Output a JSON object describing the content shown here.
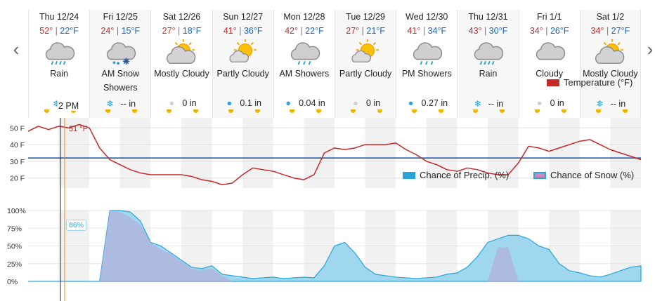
{
  "nav": {
    "prev_icon": "chevron-left-icon",
    "next_icon": "chevron-right-icon"
  },
  "days": [
    {
      "name": "Thu 12/24",
      "hi": "52°",
      "lo": "22°F",
      "icon": "rain-icon",
      "cond_lines": [
        "Rain"
      ],
      "precip_icon": "snowflake-icon",
      "precip": ""
    },
    {
      "name": "Fri 12/25",
      "hi": "24°",
      "lo": "15°F",
      "icon": "snow-showers-icon",
      "cond_lines": [
        "AM Snow",
        "Showers"
      ],
      "precip_icon": "snowflake-icon",
      "precip": "-- in"
    },
    {
      "name": "Sat 12/26",
      "hi": "27°",
      "lo": "18°F",
      "icon": "mostly-cloudy-icon",
      "cond_lines": [
        "Mostly Cloudy"
      ],
      "precip_icon": "drop-gray-icon",
      "precip": "0 in"
    },
    {
      "name": "Sun 12/27",
      "hi": "41°",
      "lo": "36°F",
      "icon": "partly-cloudy-icon",
      "cond_lines": [
        "Partly Cloudy"
      ],
      "precip_icon": "drop-icon",
      "precip": "0.1 in"
    },
    {
      "name": "Mon 12/28",
      "hi": "42°",
      "lo": "22°F",
      "icon": "showers-icon",
      "cond_lines": [
        "AM Showers"
      ],
      "precip_icon": "drop-icon",
      "precip": "0.04 in"
    },
    {
      "name": "Tue 12/29",
      "hi": "27°",
      "lo": "21°F",
      "icon": "partly-cloudy-icon",
      "cond_lines": [
        "Partly Cloudy"
      ],
      "precip_icon": "drop-gray-icon",
      "precip": "0 in"
    },
    {
      "name": "Wed 12/30",
      "hi": "41°",
      "lo": "34°F",
      "icon": "showers-icon",
      "cond_lines": [
        "PM Showers"
      ],
      "precip_icon": "drop-icon",
      "precip": "0.27 in"
    },
    {
      "name": "Thu 12/31",
      "hi": "43°",
      "lo": "30°F",
      "icon": "rain-icon",
      "cond_lines": [
        "Rain"
      ],
      "precip_icon": "snowflake-icon",
      "precip": "-- in"
    },
    {
      "name": "Fri 1/1",
      "hi": "34°",
      "lo": "26°F",
      "icon": "cloudy-icon",
      "cond_lines": [
        "Cloudy"
      ],
      "precip_icon": "drop-gray-icon",
      "precip": "0 in"
    },
    {
      "name": "Sat 1/2",
      "hi": "34°",
      "lo": "27°F",
      "icon": "mostly-cloudy-icon",
      "cond_lines": [
        "Mostly Cloudy"
      ],
      "precip_icon": "snowflake-icon",
      "precip": "-- in"
    }
  ],
  "cursor": {
    "time": "2 PM",
    "temp": "51 °F",
    "prob": "86%"
  },
  "colors": {
    "temp_line": "#c62828",
    "freezing_line": "#1e5aa8",
    "precip_fill": "#9fd8ee",
    "precip_line": "#29a3d8",
    "snow_fill": "#b2b2dc",
    "hi": "#c62828",
    "lo": "#1565c0"
  },
  "chart_data": [
    {
      "type": "line",
      "series": [
        {
          "name": "Temperature (°F)",
          "x_hours": [
            0,
            4,
            8,
            12,
            16,
            20,
            24,
            28,
            32,
            36,
            40,
            44,
            48,
            52,
            56,
            60,
            64,
            68,
            72,
            76,
            80,
            84,
            88,
            92,
            96,
            100,
            104,
            108,
            112,
            116,
            120,
            124,
            128,
            132,
            136,
            140,
            144,
            148,
            152,
            156,
            160,
            164,
            168,
            172,
            176,
            180,
            184,
            188,
            192,
            196,
            200,
            204,
            208,
            212,
            216,
            220,
            224,
            228,
            232,
            236,
            240
          ],
          "values": [
            48,
            51,
            49,
            51,
            50,
            52,
            50,
            38,
            31,
            28,
            25,
            23,
            22,
            22,
            22,
            22,
            21,
            19,
            18,
            16,
            17,
            22,
            26,
            25,
            24,
            22,
            20,
            19,
            22,
            35,
            38,
            37,
            38,
            40,
            40,
            40,
            41,
            37,
            34,
            30,
            28,
            25,
            24,
            26,
            25,
            23,
            22,
            22,
            29,
            39,
            38,
            36,
            38,
            40,
            42,
            43,
            40,
            37,
            35,
            33,
            31
          ]
        }
      ],
      "freezing": 32,
      "yticks": [
        "50 F",
        "40 F",
        "30 F",
        "20 F"
      ],
      "ylim": [
        14,
        56
      ],
      "legend": "Temperature (°F)"
    },
    {
      "type": "area",
      "series": [
        {
          "name": "Chance of Precip. (%)",
          "x_hours": [
            0,
            4,
            8,
            12,
            16,
            20,
            24,
            28,
            32,
            36,
            40,
            44,
            48,
            52,
            56,
            60,
            64,
            68,
            72,
            76,
            80,
            84,
            88,
            92,
            96,
            100,
            104,
            108,
            112,
            116,
            120,
            124,
            128,
            132,
            136,
            140,
            144,
            148,
            152,
            156,
            160,
            164,
            168,
            172,
            176,
            180,
            184,
            188,
            192,
            196,
            200,
            204,
            208,
            212,
            216,
            220,
            224,
            228,
            232,
            236,
            240
          ],
          "values": [
            0,
            0,
            0,
            0,
            0,
            0,
            0,
            0,
            100,
            100,
            98,
            85,
            55,
            50,
            40,
            30,
            20,
            18,
            22,
            10,
            8,
            6,
            4,
            5,
            6,
            4,
            5,
            6,
            5,
            22,
            50,
            55,
            40,
            20,
            10,
            8,
            6,
            5,
            4,
            5,
            6,
            10,
            12,
            20,
            35,
            55,
            60,
            65,
            65,
            60,
            50,
            45,
            25,
            15,
            12,
            8,
            6,
            10,
            15,
            20,
            22
          ]
        },
        {
          "name": "Chance of Snow (%)",
          "x_hours": [
            8,
            12,
            16,
            20,
            24,
            28,
            32,
            36,
            40,
            44,
            48,
            52,
            56,
            60,
            64,
            68,
            72,
            76,
            80,
            84,
            88,
            92,
            96,
            100,
            104,
            108,
            112,
            116,
            120,
            124,
            128,
            132,
            136,
            140,
            144,
            148,
            152,
            156,
            160,
            164,
            168,
            172,
            176,
            180,
            184,
            188,
            192,
            196,
            200,
            204,
            208,
            212,
            216,
            220,
            224,
            228,
            232,
            236,
            240
          ],
          "values": [
            0,
            0,
            0,
            0,
            0,
            0,
            100,
            98,
            90,
            80,
            55,
            45,
            38,
            28,
            18,
            16,
            18,
            8,
            0,
            0,
            0,
            0,
            0,
            0,
            0,
            0,
            0,
            0,
            0,
            0,
            0,
            0,
            0,
            0,
            0,
            0,
            0,
            0,
            0,
            0,
            0,
            0,
            0,
            0,
            48,
            48,
            0,
            0,
            0,
            0,
            0,
            0,
            0,
            0,
            0,
            0,
            0,
            0,
            0
          ]
        }
      ],
      "yticks": [
        "100%",
        "75%",
        "50%",
        "25%",
        "0%"
      ],
      "ylim": [
        0,
        100
      ],
      "legend": [
        "Chance of Precip. (%)",
        "Chance of Snow (%)"
      ]
    }
  ],
  "legends": {
    "temp": "Temperature (°F)",
    "precip": "Chance of Precip. (%)",
    "snow": "Chance of Snow (%)"
  }
}
